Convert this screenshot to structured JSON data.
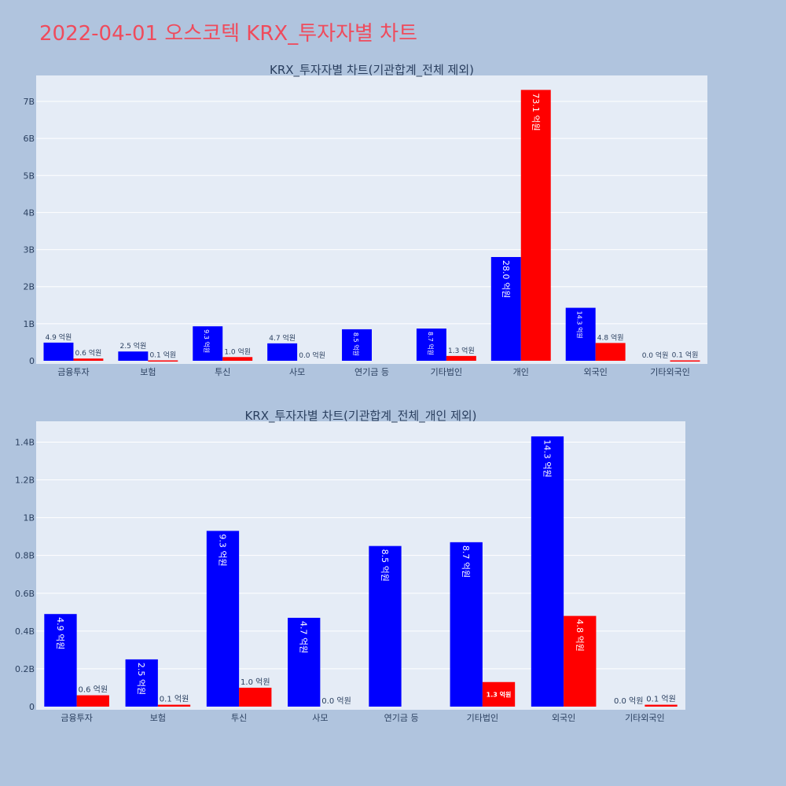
{
  "page_title": "2022-04-01 오스코텍 KRX_투자자별 차트",
  "colors": {
    "page_bg": "#b0c4de",
    "plot_bg": "#e5ecf6",
    "grid": "#ffffff",
    "title": "#ef4b5c",
    "text": "#2a3f5f",
    "buy": "#0000ff",
    "sell": "#ff0000"
  },
  "chart_data": [
    {
      "type": "bar",
      "title": "KRX_투자자별 차트(기관합계_전체 제외)",
      "categories": [
        "금융투자",
        "보험",
        "투신",
        "사모",
        "연기금 등",
        "기타법인",
        "개인",
        "외국인",
        "기타외국인"
      ],
      "series": [
        {
          "color": "#0000ff",
          "values": [
            490000000,
            250000000,
            930000000,
            470000000,
            850000000,
            870000000,
            2800000000,
            1430000000,
            0
          ],
          "labels": [
            "4.9 억원",
            "2.5 억원",
            "9.3 억원",
            "4.7 억원",
            "8.5 억원",
            "8.7 억원",
            "28.0 억원",
            "14.3 억원",
            "0.0 억원"
          ]
        },
        {
          "color": "#ff0000",
          "values": [
            60000000,
            10000000,
            100000000,
            0,
            0,
            130000000,
            7310000000,
            480000000,
            10000000
          ],
          "labels": [
            "0.6 억원",
            "0.1 억원",
            "1.0 억원",
            "0.0 억원",
            "",
            "1.3 억원",
            "73.1 억원",
            "4.8 억원",
            "0.1 억원"
          ]
        }
      ],
      "yticks": [
        "0",
        "1B",
        "2B",
        "3B",
        "4B",
        "5B",
        "6B",
        "7B"
      ],
      "ylim": [
        0,
        7700000000
      ],
      "grid": true
    },
    {
      "type": "bar",
      "title": "KRX_투자자별 차트(기관합계_전체_개인 제외)",
      "categories": [
        "금융투자",
        "보험",
        "투신",
        "사모",
        "연기금 등",
        "기타법인",
        "외국인",
        "기타외국인"
      ],
      "series": [
        {
          "color": "#0000ff",
          "values": [
            490000000,
            250000000,
            930000000,
            470000000,
            850000000,
            870000000,
            1430000000,
            0
          ],
          "labels": [
            "4.9 억원",
            "2.5 억원",
            "9.3 억원",
            "4.7 억원",
            "8.5 억원",
            "8.7 억원",
            "14.3 억원",
            "0.0 억원"
          ]
        },
        {
          "color": "#ff0000",
          "values": [
            60000000,
            10000000,
            100000000,
            0,
            0,
            130000000,
            480000000,
            10000000
          ],
          "labels": [
            "0.6 억원",
            "0.1 억원",
            "1.0 억원",
            "0.0 억원",
            "",
            "1.3 억원",
            "4.8 억원",
            "0.1 억원"
          ]
        }
      ],
      "yticks": [
        "0",
        "0.2B",
        "0.4B",
        "0.6B",
        "0.8B",
        "1B",
        "1.2B",
        "1.4B"
      ],
      "ylim": [
        0,
        1510000000
      ],
      "grid": true
    }
  ]
}
